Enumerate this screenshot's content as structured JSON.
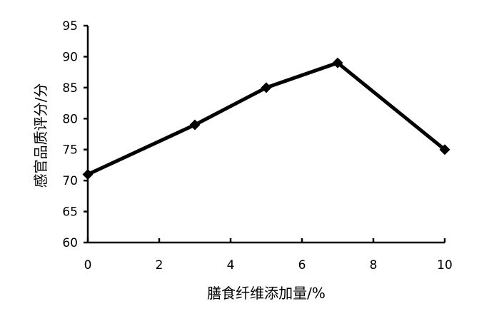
{
  "chart_data": {
    "type": "line",
    "title": "",
    "xlabel": "膳食纤维添加量/%",
    "ylabel": "感官品质评分/分",
    "xlim": [
      0,
      10
    ],
    "ylim": [
      60,
      95
    ],
    "xticks": [
      0,
      2,
      4,
      6,
      8,
      10
    ],
    "yticks": [
      60,
      65,
      70,
      75,
      80,
      85,
      90,
      95
    ],
    "grid": false,
    "legend": "none",
    "series": [
      {
        "x": [
          0,
          3,
          5,
          7,
          10
        ],
        "y": [
          71,
          79,
          85,
          89,
          75
        ],
        "color": "#000000",
        "marker": "diamond"
      }
    ]
  }
}
